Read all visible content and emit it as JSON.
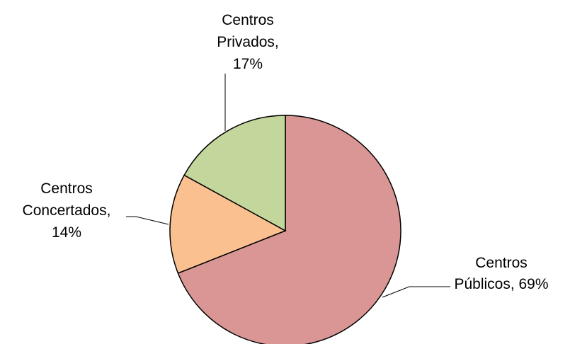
{
  "chart_data": {
    "type": "pie",
    "title": "",
    "start_angle_deg": 0,
    "direction": "clockwise",
    "slices": [
      {
        "label": "Centros Públicos",
        "label_lines": [
          "Centros",
          "Públicos, 69%"
        ],
        "value": 69,
        "color": "#D99694"
      },
      {
        "label": "Centros Concertados",
        "label_lines": [
          "Centros",
          "Concertados,",
          "14%"
        ],
        "value": 14,
        "color": "#FAC090"
      },
      {
        "label": "Centros Privados",
        "label_lines": [
          "Centros",
          "Privados,",
          "17%"
        ],
        "value": 17,
        "color": "#C3D69B"
      }
    ],
    "legend": "none"
  }
}
